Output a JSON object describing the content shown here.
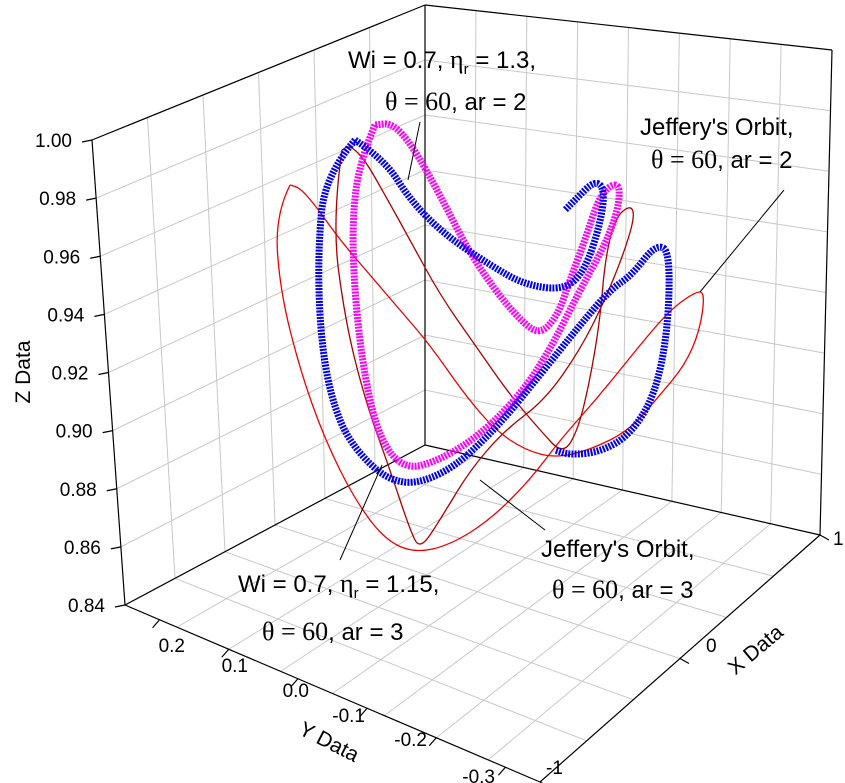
{
  "chart_data": {
    "type": "line",
    "dimensions": "3d",
    "title": "",
    "axes": {
      "x": {
        "label": "X Data",
        "range": [
          -1,
          1
        ],
        "ticks": [
          "-1",
          "0",
          "1"
        ]
      },
      "y": {
        "label": "Y Data",
        "range": [
          -0.3,
          0.3
        ],
        "ticks": [
          "0.2",
          "0.1",
          "0.0",
          "-0.1",
          "-0.2",
          "-0.3"
        ]
      },
      "z": {
        "label": "Z Data",
        "range": [
          0.84,
          1.0
        ],
        "ticks": [
          "0.84",
          "0.86",
          "0.88",
          "0.90",
          "0.92",
          "0.94",
          "0.96",
          "0.98",
          "1.00"
        ]
      }
    },
    "grid": true,
    "series": [
      {
        "key": "a",
        "color": "#0000ee",
        "style": "thick-dotted"
      },
      {
        "key": "b",
        "color": "#ff00ff",
        "style": "thick-dotted"
      },
      {
        "key": "c",
        "color": "#ee0000",
        "style": "thin"
      },
      {
        "key": "d",
        "color": "#aa0000",
        "style": "thin"
      }
    ],
    "annotations": [
      {
        "key": "wi13",
        "line1": [
          "Wi = 0.7, ",
          "η",
          "r",
          " = 1.3,"
        ],
        "line2": [
          "θ = 60",
          ", ar = 2"
        ]
      },
      {
        "key": "jo2",
        "line1": [
          "Jeffery's Orbit,"
        ],
        "line2": [
          "θ = 60",
          ", ar = 2"
        ]
      },
      {
        "key": "wi115",
        "line1": [
          "Wi = 0.7, ",
          "η",
          "r",
          " = 1.15,"
        ],
        "line2": [
          "θ = 60",
          ", ar = 3"
        ]
      },
      {
        "key": "jo3",
        "line1": [
          "Jeffery's Orbit,"
        ],
        "line2": [
          "θ = 60",
          ", ar = 3"
        ]
      }
    ]
  }
}
